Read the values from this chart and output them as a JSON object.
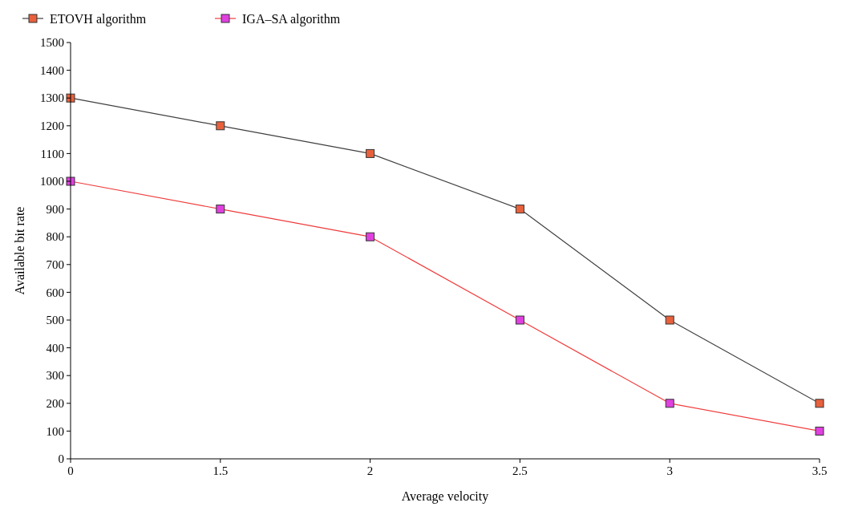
{
  "chart_data": {
    "type": "line",
    "xlabel": "Average velocity",
    "ylabel": "Available bit rate",
    "categories": [
      "0",
      "1.5",
      "2",
      "2.5",
      "3",
      "3.5"
    ],
    "series": [
      {
        "name": "ETOVH algorithm",
        "color": "#404040",
        "colors": [
          "#e8613c",
          "#e8613c",
          "#e8613c",
          "#e8613c",
          "#e8613c",
          "#e8613c"
        ],
        "values": [
          1300,
          1200,
          1100,
          900,
          500,
          200
        ]
      },
      {
        "name": "IGA–SA algorithm",
        "color": "#f03c3c",
        "colors": [
          "#e040e0",
          "#e040e0",
          "#e040e0",
          "#e040e0",
          "#e040e0",
          "#e040e0"
        ],
        "values": [
          1000,
          900,
          800,
          500,
          200,
          100
        ]
      }
    ],
    "ylim": [
      0,
      1500
    ],
    "yticks": [
      0,
      100,
      200,
      300,
      400,
      500,
      600,
      700,
      800,
      900,
      1000,
      1100,
      1200,
      1300,
      1400,
      1500
    ],
    "marker": "square",
    "legend": "top left",
    "grid": false
  }
}
